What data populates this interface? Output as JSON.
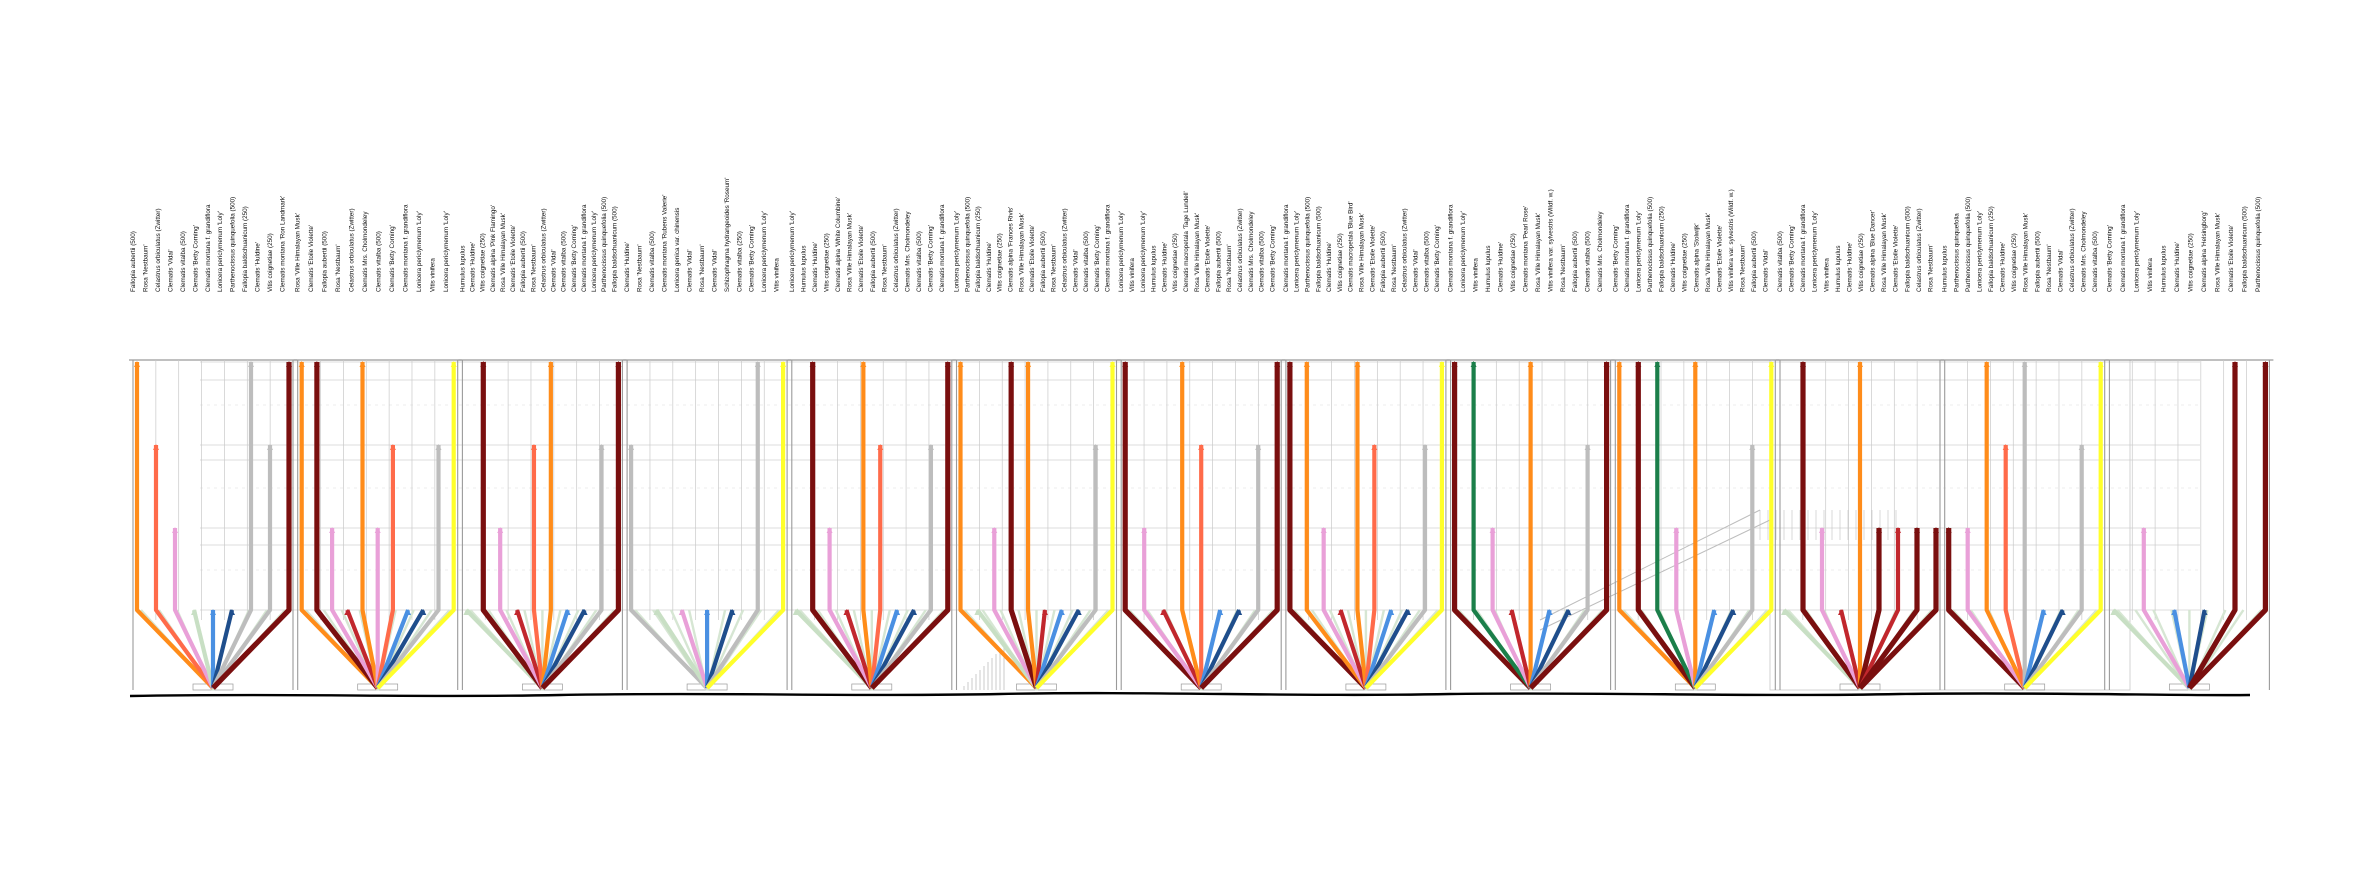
{
  "colors": {
    "ground": "#000000",
    "structure": "#9a9a9a",
    "background_lines": "#d2d2d2",
    "palette": [
      "#ff8c1a",
      "#ff6b4a",
      "#e9a0d8",
      "#ffff2a",
      "#7a0f0f",
      "#bdbdbd",
      "#c8dfc4",
      "#4a90e2",
      "#1f4e8c",
      "#c1272d",
      "#1b7f4a"
    ]
  },
  "modules": [
    {
      "labels": [
        "Fallopia aubertii (500)",
        "Rosa 'Nestbaum'",
        "Celastrus orbiculatus (Zwitter)",
        "Clematis 'Vidal'",
        "Clematis vitalba (500)",
        "Clematis 'Betty Corning'",
        "Clematis montana f. grandiflora",
        "Lonicera periclymenum 'Loly'",
        "Parthenocissus quinquefolia (500)",
        "Fallopia baldschuanicum (250)",
        "Clematis 'Huldine'",
        "Vitis coignetiae (250)",
        "Clematis montana 'Ron Landmark'"
      ],
      "strands": [
        {
          "color": "#ff8c1a",
          "level": 1
        },
        {
          "color": "#ff6b4a",
          "level": 2
        },
        {
          "color": "#e9a0d8",
          "level": 3
        },
        {
          "color": "#c8dfc4",
          "level": 4
        },
        {
          "color": "#4a90e2",
          "level": 4
        },
        {
          "color": "#1f4e8c",
          "level": 4
        },
        {
          "color": "#bdbdbd",
          "level": 1
        },
        {
          "color": "#bdbdbd",
          "level": 2
        },
        {
          "color": "#7a0f0f",
          "level": 1
        }
      ]
    },
    {
      "labels": [
        "Rosa 'Ville Himalayan Musk'",
        "Clematis 'Etoile Violette'",
        "Fallopia aubertii (500)",
        "Rosa 'Nestbaum'",
        "Celastrus orbiculatus (Zwitter)",
        "Clematis Mrs. Cholmondeley",
        "Clematis vitalba (500)",
        "Clematis 'Betty Corning'",
        "Clematis montana f. grandiflora",
        "Lonicera periclymenum 'Loly'",
        "Vitis vinifera",
        "Lonicera periclymenum 'Loly'"
      ],
      "strands": [
        {
          "color": "#ff8c1a",
          "level": 1
        },
        {
          "color": "#7a0f0f",
          "level": 1
        },
        {
          "color": "#e9a0d8",
          "level": 3
        },
        {
          "color": "#c1272d",
          "level": 4
        },
        {
          "color": "#ff8c1a",
          "level": 1
        },
        {
          "color": "#e9a0d8",
          "level": 3
        },
        {
          "color": "#ff6b4a",
          "level": 2
        },
        {
          "color": "#4a90e2",
          "level": 4
        },
        {
          "color": "#1f4e8c",
          "level": 4
        },
        {
          "color": "#bdbdbd",
          "level": 2
        },
        {
          "color": "#ffff2a",
          "level": 1
        }
      ]
    },
    {
      "labels": [
        "Humulus lupulus",
        "Clematis 'Huldine'",
        "Vitis coignetiae (250)",
        "Clematis alpina 'Pink Flamingo'",
        "Rosa 'Ville Himalayan Musk'",
        "Clematis 'Etoile Violette'",
        "Fallopia aubertii (500)",
        "Rosa 'Nestbaum'",
        "Celastrus orbiculatus (Zwitter)",
        "Clematis 'Vidal'",
        "Clematis vitalba (500)",
        "Clematis 'Betty Corning'",
        "Clematis montana f. grandiflora",
        "Lonicera periclymenum 'Loly'",
        "Parthenocissus quinquefolia (500)",
        "Fallopia baldschuanicum (500)"
      ],
      "strands": [
        {
          "color": "#c8dfc4",
          "level": 4
        },
        {
          "color": "#7a0f0f",
          "level": 1
        },
        {
          "color": "#e9a0d8",
          "level": 3
        },
        {
          "color": "#c1272d",
          "level": 4
        },
        {
          "color": "#ff6b4a",
          "level": 2
        },
        {
          "color": "#ff8c1a",
          "level": 1
        },
        {
          "color": "#4a90e2",
          "level": 4
        },
        {
          "color": "#1f4e8c",
          "level": 4
        },
        {
          "color": "#bdbdbd",
          "level": 2
        },
        {
          "color": "#7a0f0f",
          "level": 1
        }
      ]
    },
    {
      "labels": [
        "Clematis 'Huldine'",
        "Rosa 'Nestbaum'",
        "Clematis vitalba (500)",
        "Clematis montana 'Rubens Valerie'",
        "Lonicera genica var. chinensis",
        "Clematis 'Vidal'",
        "Rosa 'Nestbaum'",
        "Clematis 'Vidal'",
        "Schizophragma hydrangeoides 'Roseum'",
        "Clematis vitalba (250)",
        "Clematis 'Betty Corning'",
        "Lonicera periclymenum 'Loly'",
        "Vitis vinifera"
      ],
      "strands": [
        {
          "color": "#bdbdbd",
          "level": 2
        },
        {
          "color": "#c8dfc4",
          "level": 4
        },
        {
          "color": "#e9a0d8",
          "level": 4
        },
        {
          "color": "#4a90e2",
          "level": 4
        },
        {
          "color": "#1f4e8c",
          "level": 4
        },
        {
          "color": "#bdbdbd",
          "level": 1
        },
        {
          "color": "#ffff2a",
          "level": 1
        }
      ]
    },
    {
      "labels": [
        "Lonicera periclymenum 'Loly'",
        "Humulus lupulus",
        "Clematis 'Huldine'",
        "Vitis coignetiae (250)",
        "Clematis alpina 'White Columbine'",
        "Rosa 'Ville Himalayan Musk'",
        "Clematis 'Etoile Violette'",
        "Fallopia aubertii (500)",
        "Rosa 'Nestbaum'",
        "Celastrus orbiculatus (Zwitter)",
        "Clematis Mrs. Cholmondeley",
        "Clematis vitalba (500)",
        "Clematis 'Betty Corning'",
        "Clematis montana f. grandiflora"
      ],
      "strands": [
        {
          "color": "#c8dfc4",
          "level": 4
        },
        {
          "color": "#7a0f0f",
          "level": 1
        },
        {
          "color": "#e9a0d8",
          "level": 3
        },
        {
          "color": "#c1272d",
          "level": 4
        },
        {
          "color": "#ff8c1a",
          "level": 1
        },
        {
          "color": "#ff6b4a",
          "level": 2
        },
        {
          "color": "#4a90e2",
          "level": 4
        },
        {
          "color": "#1f4e8c",
          "level": 4
        },
        {
          "color": "#bdbdbd",
          "level": 2
        },
        {
          "color": "#7a0f0f",
          "level": 1
        }
      ]
    },
    {
      "labels": [
        "Lonicera periclymenum 'Loly'",
        "Parthenocissus quinquefolia (500)",
        "Fallopia baldschuanicum (250)",
        "Clematis 'Huldine'",
        "Vitis coignetiae (250)",
        "Clematis alpina 'Frances Rivis'",
        "Rosa 'Ville Himalayan Musk'",
        "Clematis 'Etoile Violette'",
        "Fallopia aubertii (500)",
        "Rosa 'Nestbaum'",
        "Celastrus orbiculatus (Zwitter)",
        "Clematis 'Vidal'",
        "Clematis vitalba (500)",
        "Clematis 'Betty Corning'",
        "Clematis montana f. grandiflora"
      ],
      "strands": [
        {
          "color": "#ff8c1a",
          "level": 1
        },
        {
          "color": "#c8dfc4",
          "level": 4
        },
        {
          "color": "#e9a0d8",
          "level": 3
        },
        {
          "color": "#7a0f0f",
          "level": 1
        },
        {
          "color": "#ff8c1a",
          "level": 1
        },
        {
          "color": "#c1272d",
          "level": 4
        },
        {
          "color": "#4a90e2",
          "level": 4
        },
        {
          "color": "#1f4e8c",
          "level": 4
        },
        {
          "color": "#bdbdbd",
          "level": 2
        },
        {
          "color": "#ffff2a",
          "level": 1
        }
      ]
    },
    {
      "labels": [
        "Lonicera periclymenum 'Loly'",
        "Vitis vinifera",
        "Lonicera periclymenum 'Loly'",
        "Humulus lupulus",
        "Clematis 'Huldine'",
        "Vitis coignetiae (250)",
        "Clematis macropetala 'Tage Lundell'",
        "Rosa 'Ville Himalayan Musk'",
        "Clematis 'Etoile Violette'",
        "Fallopia aubertii (500)",
        "Rosa 'Nestbaum'",
        "Celastrus orbiculatus (Zwitter)",
        "Clematis Mrs. Cholmondeley",
        "Clematis vitalba (500)",
        "Clematis 'Betty Corning'"
      ],
      "strands": [
        {
          "color": "#7a0f0f",
          "level": 1
        },
        {
          "color": "#e9a0d8",
          "level": 3
        },
        {
          "color": "#c1272d",
          "level": 4
        },
        {
          "color": "#ff8c1a",
          "level": 1
        },
        {
          "color": "#ff6b4a",
          "level": 2
        },
        {
          "color": "#4a90e2",
          "level": 4
        },
        {
          "color": "#1f4e8c",
          "level": 4
        },
        {
          "color": "#bdbdbd",
          "level": 2
        },
        {
          "color": "#7a0f0f",
          "level": 1
        }
      ]
    },
    {
      "labels": [
        "Clematis montana f. grandiflora",
        "Lonicera periclymenum 'Loly'",
        "Parthenocissus quinquefolia (500)",
        "Fallopia baldschuanicum (500)",
        "Clematis 'Huldine'",
        "Vitis coignetiae (250)",
        "Clematis macropetala 'Blue Bird'",
        "Rosa 'Ville Himalayan Musk'",
        "Clematis 'Etoile Violette'",
        "Fallopia aubertii (500)",
        "Rosa 'Nestbaum'",
        "Celastrus orbiculatus (Zwitter)",
        "Clematis 'Vidal'",
        "Clematis vitalba (500)",
        "Clematis 'Betty Corning'"
      ],
      "strands": [
        {
          "color": "#7a0f0f",
          "level": 1
        },
        {
          "color": "#ff8c1a",
          "level": 1
        },
        {
          "color": "#e9a0d8",
          "level": 3
        },
        {
          "color": "#c1272d",
          "level": 4
        },
        {
          "color": "#ff8c1a",
          "level": 1
        },
        {
          "color": "#ff6b4a",
          "level": 2
        },
        {
          "color": "#4a90e2",
          "level": 4
        },
        {
          "color": "#1f4e8c",
          "level": 4
        },
        {
          "color": "#bdbdbd",
          "level": 2
        },
        {
          "color": "#ffff2a",
          "level": 1
        }
      ]
    },
    {
      "labels": [
        "Clematis montana f. grandiflora",
        "Lonicera periclymenum 'Loly'",
        "Vitis vinifera",
        "Humulus lupulus",
        "Clematis 'Huldine'",
        "Vitis coignetiae (250)",
        "Clematis montana 'Pearl Rose'",
        "Rosa 'Ville Himalayan Musk'",
        "Vitis vinifera var. sylvestris (Wildf. w.)",
        "Rosa 'Nestbaum'",
        "Fallopia aubertii (500)",
        "Clematis vitalba (500)",
        "Clematis Mrs. Cholmondeley"
      ],
      "strands": [
        {
          "color": "#7a0f0f",
          "level": 1
        },
        {
          "color": "#1b7f4a",
          "level": 1
        },
        {
          "color": "#e9a0d8",
          "level": 3
        },
        {
          "color": "#c1272d",
          "level": 4
        },
        {
          "color": "#ff8c1a",
          "level": 1
        },
        {
          "color": "#4a90e2",
          "level": 4
        },
        {
          "color": "#1f4e8c",
          "level": 4
        },
        {
          "color": "#bdbdbd",
          "level": 2
        },
        {
          "color": "#7a0f0f",
          "level": 1
        }
      ]
    },
    {
      "labels": [
        "Clematis 'Betty Corning'",
        "Clematis montana f. grandiflora",
        "Lonicera periclymenum 'Loly'",
        "Parthenocissus quinquefolia (500)",
        "Fallopia baldschuanicum (250)",
        "Clematis 'Huldine'",
        "Vitis coignetiae (250)",
        "Clematis alpina 'Stolwijk'",
        "Rosa 'Ville Himalayan Musk'",
        "Clematis 'Etoile Violette'",
        "Vitis vinifera var. sylvestris (Wildf. w.)",
        "Rosa 'Nestbaum'",
        "Fallopia aubertii (500)",
        "Clematis 'Vidal'"
      ],
      "strands": [
        {
          "color": "#ff8c1a",
          "level": 1
        },
        {
          "color": "#7a0f0f",
          "level": 1
        },
        {
          "color": "#1b7f4a",
          "level": 1
        },
        {
          "color": "#e9a0d8",
          "level": 3
        },
        {
          "color": "#ff8c1a",
          "level": 1
        },
        {
          "color": "#4a90e2",
          "level": 4
        },
        {
          "color": "#1f4e8c",
          "level": 4
        },
        {
          "color": "#bdbdbd",
          "level": 2
        },
        {
          "color": "#ffff2a",
          "level": 1
        }
      ]
    },
    {
      "labels": [
        "Clematis vitalba (500)",
        "Clematis 'Betty Corning'",
        "Clematis montana f. grandiflora",
        "Lonicera periclymenum 'Loly'",
        "Vitis vinifera",
        "Humulus lupulus",
        "Clematis 'Huldine'",
        "Vitis coignetiae (250)",
        "Clematis alpina 'Blue Dancer'",
        "Rosa 'Ville Himalayan Musk'",
        "Clematis 'Etoile Violette'",
        "Fallopia baldschuanicum (500)",
        "Celastrus orbiculatus (Zwitter)",
        "Rosa 'Nestbaum'"
      ],
      "strands": [
        {
          "color": "#c8dfc4",
          "level": 4
        },
        {
          "color": "#7a0f0f",
          "level": 1
        },
        {
          "color": "#e9a0d8",
          "level": 3
        },
        {
          "color": "#c1272d",
          "level": 4
        },
        {
          "color": "#ff8c1a",
          "level": 1
        },
        {
          "color": "#7a0f0f",
          "level": 3
        },
        {
          "color": "#c1272d",
          "level": 3
        },
        {
          "color": "#7a0f0f",
          "level": 3
        },
        {
          "color": "#7a0f0f",
          "level": 3
        }
      ]
    },
    {
      "labels": [
        "Humulus lupulus",
        "Parthenocissus quinquefolia",
        "Parthenocissus quinquefolia (500)",
        "Lonicera periclymenum 'Loly'",
        "Fallopia baldschuanicum (250)",
        "Clematis 'Huldine'",
        "Vitis coignetiae (250)",
        "Rosa 'Ville Himalayan Musk'",
        "Fallopia aubertii (500)",
        "Rosa 'Nestbaum'",
        "Clematis 'Vidal'",
        "Celastrus orbiculatus (Zwitter)",
        "Clematis Mrs. Cholmondeley",
        "Clematis vitalba (500)"
      ],
      "strands": [
        {
          "color": "#7a0f0f",
          "level": 3
        },
        {
          "color": "#e9a0d8",
          "level": 3
        },
        {
          "color": "#ff8c1a",
          "level": 1
        },
        {
          "color": "#ff6b4a",
          "level": 2
        },
        {
          "color": "#bdbdbd",
          "level": 1
        },
        {
          "color": "#4a90e2",
          "level": 4
        },
        {
          "color": "#1f4e8c",
          "level": 4
        },
        {
          "color": "#bdbdbd",
          "level": 2
        },
        {
          "color": "#ffff2a",
          "level": 1
        }
      ]
    },
    {
      "labels": [
        "Clematis 'Betty Corning'",
        "Clematis montana f. grandiflora",
        "Lonicera periclymenum 'Loly'",
        "Vitis vinifera",
        "Humulus lupulus",
        "Clematis 'Huldine'",
        "Vitis coignetiae (250)",
        "Clematis alpina 'Helsingborg'",
        "Rosa 'Ville Himalayan Musk'",
        "Clematis 'Etoile Violette'",
        "Fallopia baldschuanicum (500)",
        "Parthenocissus quinquefolia (500)"
      ],
      "strands": [
        {
          "color": "#c8dfc4",
          "level": 4
        },
        {
          "color": "#e9a0d8",
          "level": 3
        },
        {
          "color": "#4a90e2",
          "level": 4
        },
        {
          "color": "#1f4e8c",
          "level": 4
        },
        {
          "color": "#7a0f0f",
          "level": 1
        },
        {
          "color": "#7a0f0f",
          "level": 1
        }
      ]
    }
  ]
}
